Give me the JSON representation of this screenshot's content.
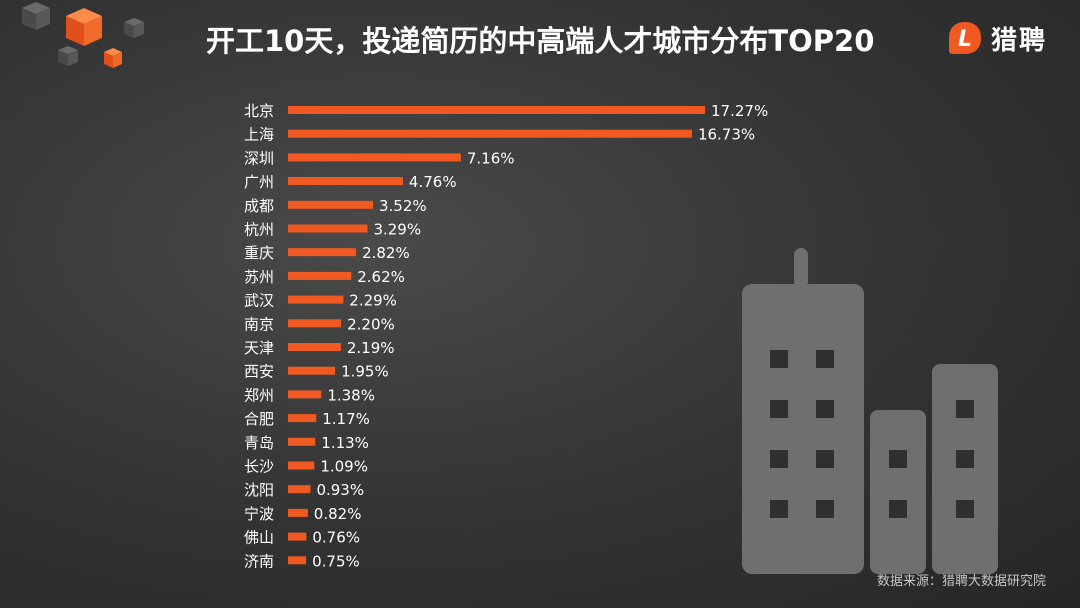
{
  "header": {
    "title": "开工10天，投递简历的中高端人才城市分布TOP20"
  },
  "brand": {
    "logo_letter": "L",
    "logo_text": "猎聘",
    "accent_color": "#f05a22"
  },
  "footer": {
    "source": "数据来源：猎聘大数据研究院"
  },
  "chart_data": {
    "type": "bar",
    "orientation": "horizontal",
    "title": "开工10天，投递简历的中高端人才城市分布TOP20",
    "xlabel": "",
    "ylabel": "",
    "unit": "%",
    "grid": false,
    "legend": "none",
    "bar_color": "#f05a22",
    "xlim": [
      0,
      17.27
    ],
    "categories": [
      "北京",
      "上海",
      "深圳",
      "广州",
      "成都",
      "杭州",
      "重庆",
      "苏州",
      "武汉",
      "南京",
      "天津",
      "西安",
      "郑州",
      "合肥",
      "青岛",
      "长沙",
      "沈阳",
      "宁波",
      "佛山",
      "济南"
    ],
    "values": [
      17.27,
      16.73,
      7.16,
      4.76,
      3.52,
      3.29,
      2.82,
      2.62,
      2.29,
      2.2,
      2.19,
      1.95,
      1.38,
      1.17,
      1.13,
      1.09,
      0.93,
      0.82,
      0.76,
      0.75
    ],
    "value_labels": [
      "17.27%",
      "16.73%",
      "7.16%",
      "4.76%",
      "3.52%",
      "3.29%",
      "2.82%",
      "2.62%",
      "2.29%",
      "2.20%",
      "2.19%",
      "1.95%",
      "1.38%",
      "1.17%",
      "1.13%",
      "1.09%",
      "0.93%",
      "0.82%",
      "0.76%",
      "0.75%"
    ]
  }
}
